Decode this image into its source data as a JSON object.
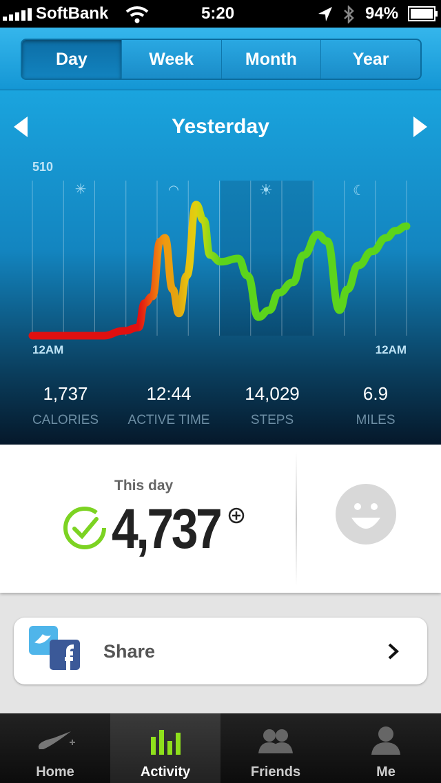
{
  "status_bar": {
    "carrier": "SoftBank",
    "time": "5:20",
    "battery": "94%"
  },
  "tabs": {
    "items": [
      "Day",
      "Week",
      "Month",
      "Year"
    ],
    "selected": 0
  },
  "period_title": "Yesterday",
  "activity_chart": {
    "type": "line",
    "x": [
      0,
      4.5,
      5.9,
      6.8,
      7.2,
      7.7,
      8.2,
      8.5,
      9.0,
      9.4,
      9.9,
      10.5,
      11.0,
      11.4,
      12.1,
      13.2,
      13.8,
      14.5,
      15.2,
      15.8,
      16.7,
      17.4,
      18.3,
      18.9,
      19.7,
      20.2,
      20.9,
      21.8,
      22.7,
      23.3,
      24
    ],
    "values": [
      0,
      0,
      16,
      27,
      107,
      129,
      310,
      322,
      152,
      73,
      197,
      431,
      379,
      265,
      243,
      254,
      197,
      61,
      84,
      141,
      175,
      265,
      333,
      311,
      84,
      152,
      231,
      277,
      322,
      345,
      360
    ],
    "colors": [
      "#e01010",
      "#e01010",
      "#e01010",
      "#e01010",
      "#e83010",
      "#ee6010",
      "#f08a10",
      "#f09a10",
      "#e8a010",
      "#e0a810",
      "#e8c010",
      "#e0d010",
      "#b8d810",
      "#8cd818",
      "#5cd41c",
      "#5cd41c",
      "#5cd41c",
      "#5cd41c",
      "#5cd41c",
      "#5cd41c",
      "#5cd41c",
      "#5cd41c",
      "#5cd41c",
      "#5cd41c",
      "#5cd41c",
      "#5cd41c",
      "#5cd41c",
      "#5cd41c",
      "#5cd41c",
      "#5cd41c",
      "#5cd41c"
    ],
    "xlim": [
      0,
      24
    ],
    "ylim": [
      0,
      510
    ],
    "yticks": [
      510
    ],
    "xticks": [
      {
        "value": 0,
        "label": "12AM"
      },
      {
        "value": 24,
        "label": "12AM"
      }
    ]
  },
  "stats": [
    {
      "value": "1,737",
      "label": "CALORIES"
    },
    {
      "value": "12:44",
      "label": "ACTIVE TIME"
    },
    {
      "value": "14,029",
      "label": "STEPS"
    },
    {
      "value": "6.9",
      "label": "MILES"
    }
  ],
  "summary": {
    "caption": "This day",
    "fuel": "4,737"
  },
  "share": {
    "label": "Share"
  },
  "nav": {
    "items": [
      "Home",
      "Activity",
      "Friends",
      "Me"
    ],
    "selected": 1
  }
}
